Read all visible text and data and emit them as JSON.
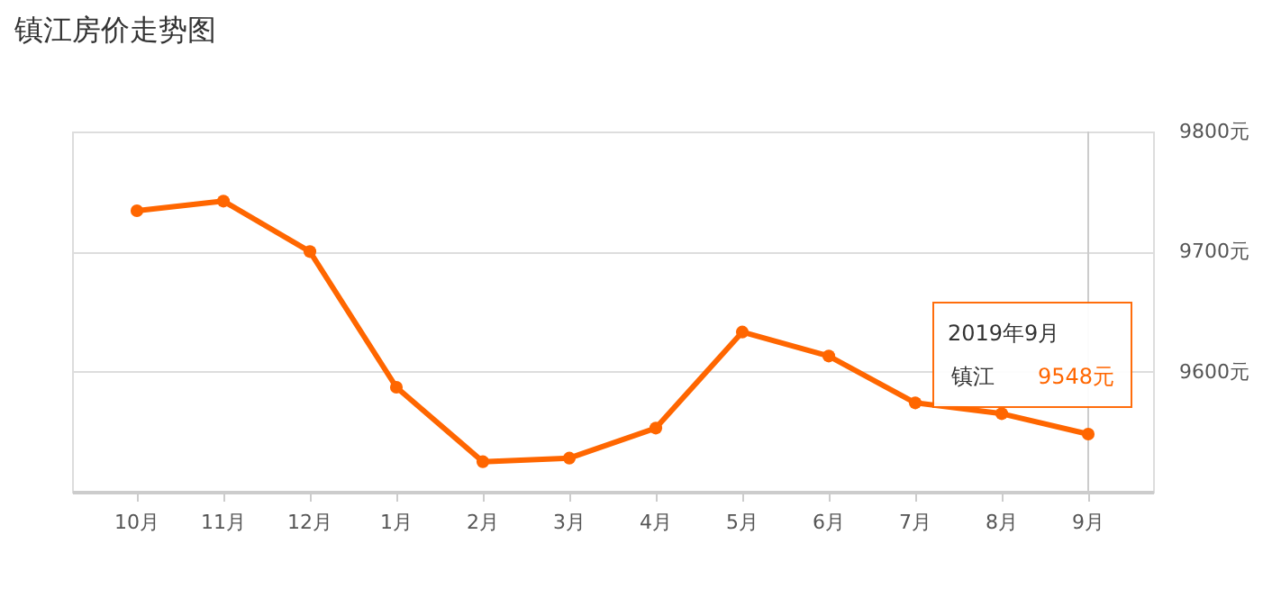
{
  "chart_data": {
    "type": "line",
    "title": "镇江房价走势图",
    "categories": [
      "10月",
      "11月",
      "12月",
      "1月",
      "2月",
      "3月",
      "4月",
      "5月",
      "6月",
      "7月",
      "8月",
      "9月"
    ],
    "series": [
      {
        "name": "镇江",
        "color": "#ff6600",
        "values": [
          9734,
          9742,
          9700,
          9587,
          9525,
          9528,
          9553,
          9633,
          9613,
          9574,
          9565,
          9548
        ],
        "value_labels": [
          null,
          null,
          null,
          null,
          null,
          null,
          null,
          null,
          null,
          null,
          null,
          "9548元"
        ]
      }
    ],
    "ylim": [
      9500,
      9800
    ],
    "yticks": [
      {
        "value": 9600,
        "label": "9600元"
      },
      {
        "value": 9700,
        "label": "9700元"
      },
      {
        "value": 9800,
        "label": "9800元"
      }
    ],
    "grid": "y",
    "marker": "circle",
    "line_style": "solid",
    "ref_lines": [
      {
        "axis": "x",
        "value": "9月",
        "color": "#cccccc"
      }
    ],
    "annotations": [
      "2019年9月"
    ]
  }
}
